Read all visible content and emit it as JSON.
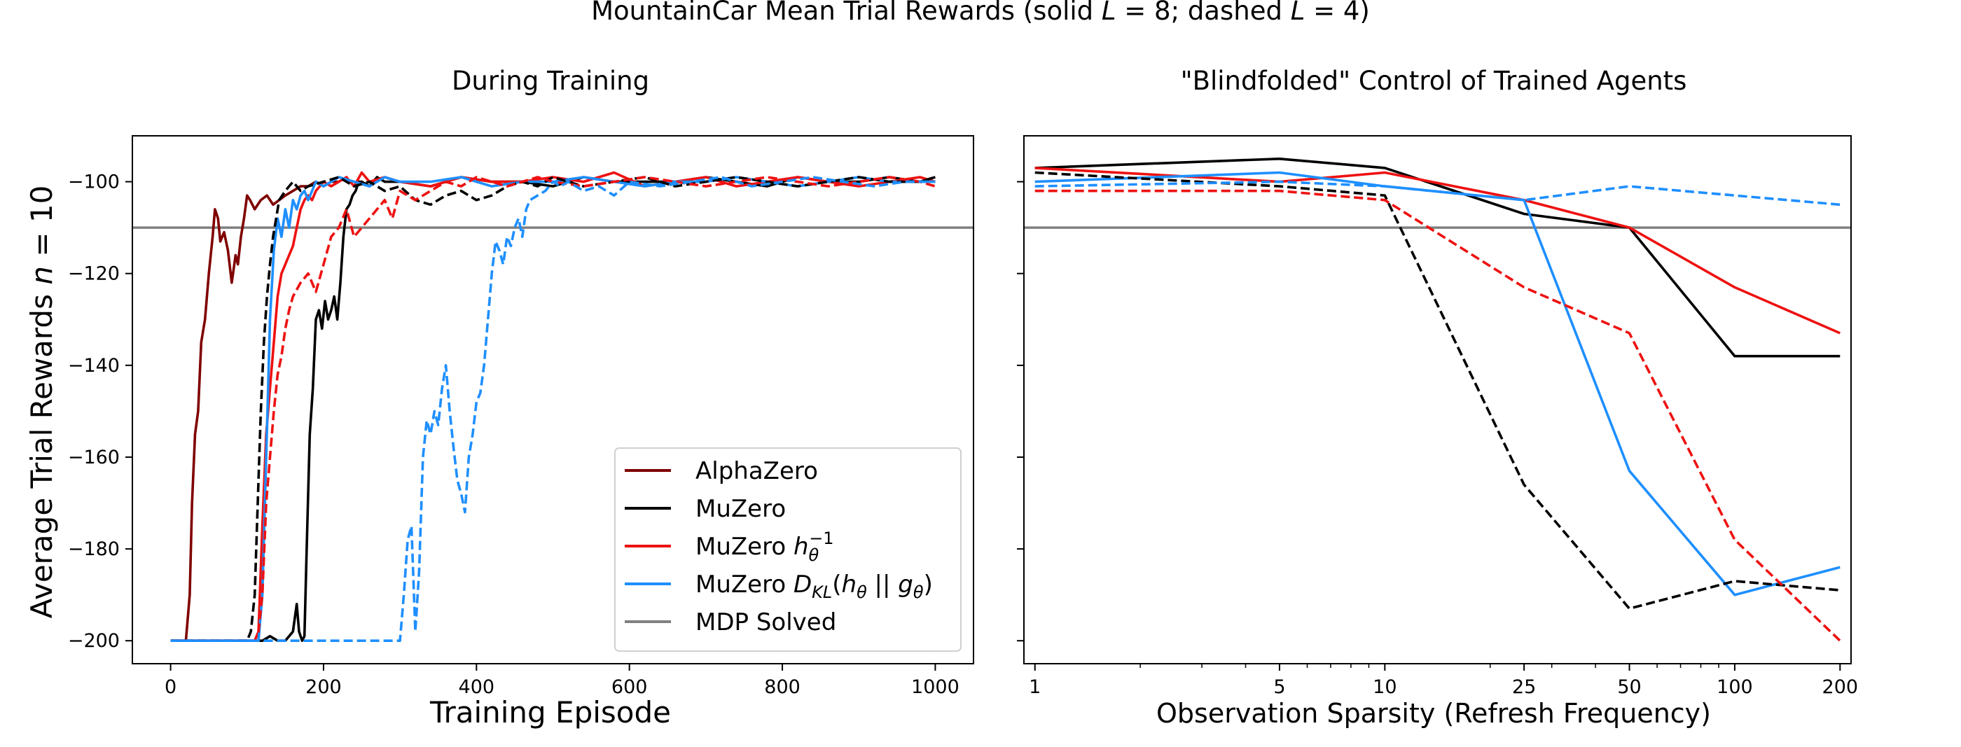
{
  "suptitle": "MountainCar Mean Trial Rewards (solid L = 8; dashed L = 4)",
  "colors": {
    "AlphaZero": "#7f0000",
    "MuZero": "#000000",
    "MuZeroInv": "#ee1111",
    "MuZeroKL": "#1e8fff",
    "MDP": "#808080"
  },
  "legend": {
    "entries": [
      {
        "key": "AlphaZero",
        "label": "AlphaZero"
      },
      {
        "key": "MuZero",
        "label": "MuZero"
      },
      {
        "key": "MuZeroInv",
        "label": "MuZero h_θ^-1"
      },
      {
        "key": "MuZeroKL",
        "label": "MuZero D_KL(h_θ || g_θ)"
      },
      {
        "key": "MDP",
        "label": "MDP Solved"
      }
    ]
  },
  "chart_data": [
    {
      "type": "line",
      "title": "During Training",
      "xlabel": "Training Episode",
      "ylabel": "Average Trial Rewards n = 10",
      "xlim": [
        -50,
        1050
      ],
      "ylim": [
        -205,
        -90
      ],
      "xticks": [
        0,
        200,
        400,
        600,
        800,
        1000
      ],
      "yticks": [
        -200,
        -180,
        -160,
        -140,
        -120,
        -100
      ],
      "hline": {
        "y": -110,
        "name": "MDP Solved"
      },
      "series": [
        {
          "name": "AlphaZero",
          "style": "solid",
          "x": [
            0,
            20,
            25,
            28,
            32,
            36,
            40,
            45,
            50,
            55,
            58,
            62,
            65,
            70,
            75,
            80,
            85,
            88,
            92,
            96,
            100,
            104,
            110,
            118,
            126,
            134,
            142,
            150,
            160,
            170,
            180,
            190,
            200,
            210,
            220
          ],
          "y": [
            -200,
            -200,
            -190,
            -170,
            -155,
            -150,
            -135,
            -130,
            -120,
            -112,
            -106,
            -108,
            -113,
            -111,
            -115,
            -122,
            -116,
            -118,
            -112,
            -108,
            -103,
            -104,
            -106,
            -104,
            -103,
            -105,
            -104,
            -103,
            -102,
            -101,
            -101,
            -100,
            -101,
            -100,
            -100
          ]
        },
        {
          "name": "MuZero",
          "style": "solid",
          "x": [
            0,
            120,
            130,
            140,
            150,
            160,
            165,
            168,
            172,
            175,
            178,
            182,
            186,
            190,
            194,
            198,
            202,
            206,
            210,
            214,
            218,
            222,
            226,
            230,
            234,
            238,
            242,
            246,
            250,
            260,
            270,
            280,
            300,
            340,
            380,
            420,
            460,
            500,
            540,
            580,
            620,
            660,
            700,
            740,
            780,
            820,
            860,
            900,
            940,
            980,
            1000
          ],
          "y": [
            -200,
            -200,
            -199,
            -200,
            -200,
            -198,
            -192,
            -198,
            -200,
            -199,
            -180,
            -155,
            -145,
            -130,
            -128,
            -132,
            -126,
            -130,
            -128,
            -125,
            -130,
            -122,
            -112,
            -106,
            -105,
            -103,
            -102,
            -100,
            -100,
            -101,
            -99,
            -100,
            -100,
            -101,
            -99,
            -100,
            -100,
            -101,
            -99,
            -100,
            -100,
            -100,
            -99,
            -100,
            -101,
            -99,
            -100,
            -100,
            -99,
            -100,
            -99
          ]
        },
        {
          "name": "MuZero h_θ^-1",
          "style": "solid",
          "x": [
            0,
            110,
            115,
            120,
            125,
            130,
            135,
            140,
            145,
            150,
            155,
            160,
            165,
            170,
            175,
            180,
            185,
            190,
            200,
            210,
            220,
            230,
            240,
            250,
            260,
            280,
            300,
            340,
            380,
            420,
            460,
            500,
            540,
            580,
            620,
            660,
            700,
            740,
            780,
            820,
            860,
            900,
            940,
            980,
            1000
          ],
          "y": [
            -200,
            -200,
            -198,
            -175,
            -155,
            -145,
            -135,
            -125,
            -120,
            -118,
            -116,
            -114,
            -110,
            -106,
            -104,
            -103,
            -104,
            -102,
            -100,
            -101,
            -100,
            -99,
            -101,
            -98,
            -100,
            -99,
            -100,
            -101,
            -99,
            -100,
            -100,
            -99,
            -100,
            -98,
            -101,
            -100,
            -99,
            -101,
            -100,
            -99,
            -100,
            -101,
            -100,
            -99,
            -100
          ]
        },
        {
          "name": "MuZero D_KL(h_θ || g_θ)",
          "style": "solid",
          "x": [
            0,
            115,
            120,
            125,
            130,
            135,
            140,
            145,
            150,
            155,
            160,
            165,
            170,
            175,
            180,
            185,
            190,
            200,
            210,
            220,
            240,
            260,
            280,
            300,
            340,
            380,
            420,
            460,
            500,
            540,
            580,
            620,
            660,
            700,
            740,
            780,
            820,
            860,
            900,
            940,
            980,
            1000
          ],
          "y": [
            -200,
            -200,
            -190,
            -160,
            -130,
            -115,
            -108,
            -112,
            -106,
            -110,
            -104,
            -106,
            -103,
            -102,
            -104,
            -102,
            -100,
            -101,
            -100,
            -99,
            -100,
            -101,
            -99,
            -100,
            -100,
            -99,
            -101,
            -100,
            -100,
            -99,
            -100,
            -101,
            -100,
            -100,
            -99,
            -100,
            -101,
            -100,
            -99,
            -100,
            -100,
            -100
          ]
        },
        {
          "name": "MuZero",
          "style": "dashed",
          "x": [
            0,
            100,
            105,
            110,
            115,
            118,
            122,
            126,
            130,
            134,
            138,
            142,
            146,
            150,
            155,
            160,
            170,
            180,
            200,
            220,
            240,
            260,
            280,
            300,
            320,
            340,
            360,
            380,
            400,
            420,
            440,
            460,
            480,
            500,
            520,
            540,
            580,
            620,
            660,
            700,
            740,
            780,
            820,
            860,
            900,
            940,
            980,
            1000
          ],
          "y": [
            -200,
            -200,
            -198,
            -190,
            -165,
            -150,
            -135,
            -125,
            -118,
            -112,
            -108,
            -104,
            -103,
            -102,
            -101,
            -100,
            -102,
            -101,
            -100,
            -99,
            -101,
            -100,
            -102,
            -101,
            -104,
            -105,
            -103,
            -102,
            -104,
            -103,
            -101,
            -100,
            -101,
            -99,
            -100,
            -101,
            -100,
            -99,
            -101,
            -100,
            -99,
            -100,
            -101,
            -100,
            -99,
            -100,
            -100,
            -99
          ]
        },
        {
          "name": "MuZero h_θ^-1",
          "style": "dashed",
          "x": [
            0,
            110,
            115,
            120,
            125,
            130,
            135,
            140,
            145,
            150,
            155,
            160,
            170,
            180,
            190,
            200,
            210,
            220,
            230,
            240,
            250,
            260,
            270,
            280,
            290,
            300,
            320,
            340,
            360,
            380,
            400,
            420,
            440,
            460,
            480,
            500,
            540,
            580,
            620,
            660,
            700,
            740,
            780,
            820,
            860,
            900,
            940,
            980,
            1000
          ],
          "y": [
            -200,
            -200,
            -198,
            -190,
            -170,
            -160,
            -150,
            -142,
            -138,
            -132,
            -128,
            -125,
            -122,
            -120,
            -124,
            -118,
            -112,
            -110,
            -106,
            -112,
            -110,
            -108,
            -106,
            -104,
            -108,
            -102,
            -104,
            -102,
            -100,
            -101,
            -99,
            -100,
            -101,
            -100,
            -99,
            -100,
            -101,
            -100,
            -99,
            -100,
            -101,
            -100,
            -99,
            -100,
            -101,
            -100,
            -99,
            -100,
            -101
          ]
        },
        {
          "name": "MuZero D_KL(h_θ || g_θ)",
          "style": "dashed",
          "x": [
            0,
            300,
            305,
            310,
            315,
            320,
            325,
            330,
            335,
            340,
            345,
            350,
            355,
            360,
            365,
            370,
            375,
            380,
            385,
            390,
            395,
            400,
            405,
            410,
            415,
            420,
            425,
            430,
            435,
            440,
            445,
            450,
            455,
            460,
            465,
            470,
            480,
            490,
            500,
            510,
            520,
            540,
            560,
            580,
            600,
            640,
            680,
            720,
            760,
            800,
            840,
            880,
            920,
            960,
            1000
          ],
          "y": [
            -200,
            -200,
            -190,
            -178,
            -175,
            -198,
            -185,
            -160,
            -152,
            -155,
            -150,
            -153,
            -145,
            -140,
            -150,
            -158,
            -165,
            -168,
            -172,
            -160,
            -155,
            -148,
            -146,
            -140,
            -130,
            -120,
            -113,
            -115,
            -118,
            -112,
            -114,
            -110,
            -108,
            -112,
            -106,
            -104,
            -103,
            -102,
            -100,
            -101,
            -100,
            -102,
            -101,
            -103,
            -100,
            -101,
            -100,
            -99,
            -101,
            -100,
            -99,
            -100,
            -101,
            -100,
            -100
          ]
        }
      ]
    },
    {
      "type": "line",
      "title": "\"Blindfolded\" Control of Trained Agents",
      "xlabel": "Observation Sparsity (Refresh Frequency)",
      "xscale": "log",
      "xlim": [
        0.93,
        215
      ],
      "ylim": [
        -205,
        -90
      ],
      "xticks": [
        1,
        5,
        10,
        25,
        50,
        100,
        200
      ],
      "yticks": [
        -200,
        -180,
        -160,
        -140,
        -120,
        -100
      ],
      "hline": {
        "y": -110,
        "name": "MDP Solved"
      },
      "series": [
        {
          "name": "MuZero",
          "style": "solid",
          "x": [
            1,
            5,
            10,
            25,
            50,
            100,
            200
          ],
          "y": [
            -97,
            -95,
            -97,
            -107,
            -110,
            -138,
            -138
          ]
        },
        {
          "name": "MuZero h_θ^-1",
          "style": "solid",
          "x": [
            1,
            5,
            10,
            25,
            50,
            100,
            200
          ],
          "y": [
            -97,
            -100,
            -98,
            -104,
            -110,
            -123,
            -133
          ]
        },
        {
          "name": "MuZero D_KL(h_θ || g_θ)",
          "style": "solid",
          "x": [
            1,
            5,
            10,
            25,
            50,
            100,
            200
          ],
          "y": [
            -100,
            -98,
            -101,
            -104,
            -163,
            -190,
            -184
          ]
        },
        {
          "name": "MuZero",
          "style": "dashed",
          "x": [
            1,
            5,
            10,
            25,
            50,
            100,
            200
          ],
          "y": [
            -98,
            -101,
            -103,
            -166,
            -193,
            -187,
            -189
          ]
        },
        {
          "name": "MuZero h_θ^-1",
          "style": "dashed",
          "x": [
            1,
            5,
            10,
            25,
            50,
            100,
            200
          ],
          "y": [
            -102,
            -102,
            -104,
            -123,
            -133,
            -178,
            -200
          ]
        },
        {
          "name": "MuZero D_KL(h_θ || g_θ)",
          "style": "dashed",
          "x": [
            1,
            5,
            10,
            25,
            50,
            100,
            200
          ],
          "y": [
            -101,
            -100,
            -101,
            -104,
            -101,
            -103,
            -105
          ]
        }
      ]
    }
  ]
}
